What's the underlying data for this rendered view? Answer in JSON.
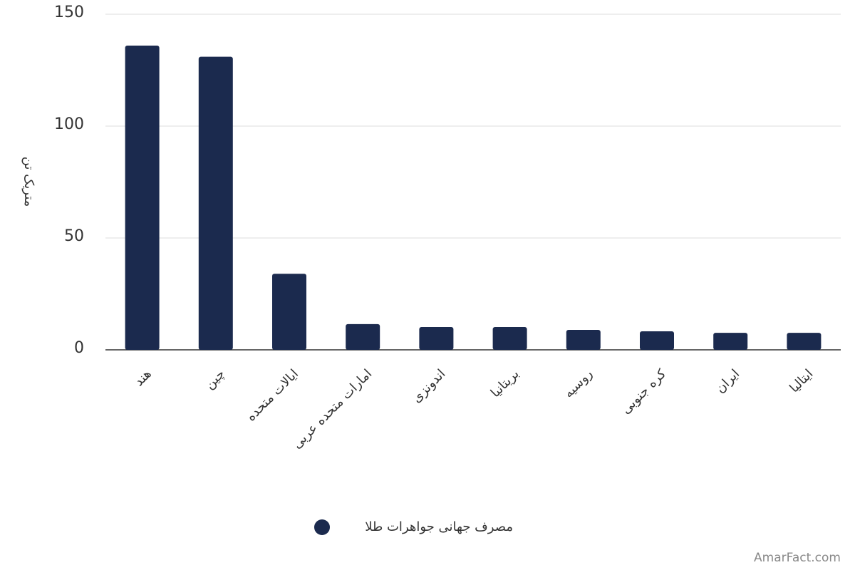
{
  "chart_data": {
    "type": "bar",
    "y_label": "متریک تن",
    "categories": [
      "هند",
      "چین",
      "ایالات متحده",
      "امارات متحده عربی",
      "اندونزی",
      "بریتانیا",
      "روسیه",
      "کره جنوبی",
      "ایران",
      "ایتالیا"
    ],
    "series": [
      {
        "name": "مصرف جهانی جواهرات طلا",
        "color": "#1b2a4e",
        "values": [
          136,
          131,
          34,
          11.5,
          10.2,
          10.2,
          8.9,
          8.3,
          7.6,
          7.6
        ]
      }
    ],
    "ylim": [
      0,
      150
    ],
    "yticks": [
      0,
      50,
      100,
      150
    ],
    "grid": true,
    "legend": "bottom",
    "watermark": "AmarFact.com"
  }
}
